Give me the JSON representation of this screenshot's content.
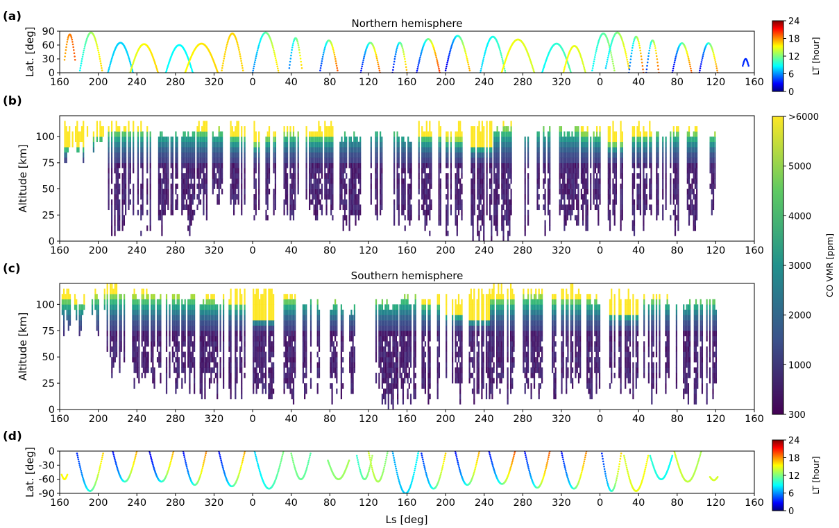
{
  "figure": {
    "xlabel": "Ls [deg]",
    "colorbars": {
      "lt": {
        "label": "LT [hour]",
        "ticks": [
          "0",
          "6",
          "12",
          "18",
          "24"
        ]
      },
      "co": {
        "label": "CO VMR [ppm]",
        "ticks": [
          "300",
          "1000",
          "2000",
          "3000",
          "4000",
          "5000",
          ">6000"
        ]
      }
    }
  },
  "chart_data": [
    {
      "id": "a",
      "panel_letter": "(a)",
      "type": "scatter",
      "title": "Northern hemisphere",
      "xlabel": "",
      "ylabel": "Lat. [deg]",
      "xticks": [
        "160",
        "200",
        "240",
        "280",
        "320",
        "0",
        "40",
        "80",
        "120",
        "160",
        "200",
        "240",
        "280",
        "320",
        "0",
        "40",
        "80",
        "120",
        "160"
      ],
      "yticks": [
        "0",
        "30",
        "60",
        "90"
      ],
      "ylim": [
        0,
        90
      ],
      "xlim_unwrapped_ls": [
        160,
        880
      ],
      "color_by": "LT [hour]",
      "colormap": "jet",
      "arcs": [
        {
          "ls_start": 165,
          "ls_end": 176,
          "peak": 83,
          "base": 28,
          "lt_start": 17,
          "lt_end": 19
        },
        {
          "ls_start": 181,
          "ls_end": 204,
          "peak": 87,
          "base": 5,
          "lt_start": 9,
          "lt_end": 16
        },
        {
          "ls_start": 210,
          "ls_end": 236,
          "peak": 65,
          "base": 0,
          "lt_start": 8,
          "lt_end": 8
        },
        {
          "ls_start": 233,
          "ls_end": 262,
          "peak": 62,
          "base": 0,
          "lt_start": 14,
          "lt_end": 16
        },
        {
          "ls_start": 270,
          "ls_end": 298,
          "peak": 60,
          "base": 0,
          "lt_start": 9,
          "lt_end": 9
        },
        {
          "ls_start": 290,
          "ls_end": 324,
          "peak": 63,
          "base": 0,
          "lt_start": 15,
          "lt_end": 16
        },
        {
          "ls_start": 328,
          "ls_end": 350,
          "peak": 85,
          "base": 5,
          "lt_start": 16,
          "lt_end": 16
        },
        {
          "ls_start": 360,
          "ls_end": 387,
          "peak": 87,
          "base": 0,
          "lt_start": 6,
          "lt_end": 16
        },
        {
          "ls_start": 398,
          "ls_end": 411,
          "peak": 75,
          "base": 10,
          "lt_start": 6,
          "lt_end": 16
        },
        {
          "ls_start": 430,
          "ls_end": 448,
          "peak": 70,
          "base": 5,
          "lt_start": 4,
          "lt_end": 19
        },
        {
          "ls_start": 472,
          "ls_end": 492,
          "peak": 65,
          "base": 0,
          "lt_start": 3,
          "lt_end": 19
        },
        {
          "ls_start": 505,
          "ls_end": 520,
          "peak": 65,
          "base": 0,
          "lt_start": 3,
          "lt_end": 17
        },
        {
          "ls_start": 530,
          "ls_end": 554,
          "peak": 73,
          "base": 0,
          "lt_start": 3,
          "lt_end": 20
        },
        {
          "ls_start": 560,
          "ls_end": 585,
          "peak": 80,
          "base": 5,
          "lt_start": 2,
          "lt_end": 17
        },
        {
          "ls_start": 596,
          "ls_end": 622,
          "peak": 78,
          "base": 0,
          "lt_start": 8,
          "lt_end": 11
        },
        {
          "ls_start": 618,
          "ls_end": 652,
          "peak": 72,
          "base": 0,
          "lt_start": 15,
          "lt_end": 14
        },
        {
          "ls_start": 660,
          "ls_end": 690,
          "peak": 63,
          "base": 0,
          "lt_start": 9,
          "lt_end": 11
        },
        {
          "ls_start": 682,
          "ls_end": 705,
          "peak": 58,
          "base": 0,
          "lt_start": 15,
          "lt_end": 14
        },
        {
          "ls_start": 712,
          "ls_end": 735,
          "peak": 85,
          "base": 5,
          "lt_start": 9,
          "lt_end": 13
        },
        {
          "ls_start": 726,
          "ls_end": 750,
          "peak": 87,
          "base": 10,
          "lt_start": 8,
          "lt_end": 16
        },
        {
          "ls_start": 750,
          "ls_end": 765,
          "peak": 78,
          "base": 0,
          "lt_start": 5,
          "lt_end": 19
        },
        {
          "ls_start": 768,
          "ls_end": 781,
          "peak": 70,
          "base": 0,
          "lt_start": 4,
          "lt_end": 19
        },
        {
          "ls_start": 795,
          "ls_end": 815,
          "peak": 64,
          "base": 0,
          "lt_start": 2,
          "lt_end": 19
        },
        {
          "ls_start": 823,
          "ls_end": 842,
          "peak": 64,
          "base": 0,
          "lt_start": 2,
          "lt_end": 18
        },
        {
          "ls_start": 868,
          "ls_end": 874,
          "peak": 30,
          "base": 15,
          "lt_start": 4,
          "lt_end": 4
        }
      ]
    },
    {
      "id": "b",
      "panel_letter": "(b)",
      "type": "heatmap",
      "title": "",
      "xlabel": "",
      "ylabel": "Altitude [km]",
      "xticks": [
        "160",
        "200",
        "240",
        "280",
        "320",
        "0",
        "40",
        "80",
        "120",
        "160",
        "200",
        "240",
        "280",
        "320",
        "0",
        "40",
        "80",
        "120",
        "160"
      ],
      "yticks": [
        "0",
        "25",
        "50",
        "75",
        "100"
      ],
      "ylim": [
        0,
        120
      ],
      "xlim_unwrapped_ls": [
        160,
        880
      ],
      "color_by": "CO VMR [ppm]",
      "colormap": "viridis",
      "vmin": 300,
      "vmax": 6000,
      "profile_groups": [
        {
          "ls_start": 163,
          "ls_end": 185,
          "top": 115,
          "bottom": 70,
          "yellow_below": 88
        },
        {
          "ls_start": 188,
          "ls_end": 197,
          "top": 110,
          "bottom": 75,
          "yellow_below": 98
        },
        {
          "ls_start": 198,
          "ls_end": 206,
          "top": 112,
          "bottom": 85,
          "yellow_below": 100
        },
        {
          "ls_start": 210,
          "ls_end": 258,
          "top": 115,
          "bottom": 5,
          "yellow_below": 105
        },
        {
          "ls_start": 262,
          "ls_end": 300,
          "top": 110,
          "bottom": 5,
          "yellow_below": 107
        },
        {
          "ls_start": 302,
          "ls_end": 312,
          "top": 112,
          "bottom": 20,
          "yellow_below": 105
        },
        {
          "ls_start": 318,
          "ls_end": 329,
          "top": 110,
          "bottom": 35,
          "yellow_below": 106
        },
        {
          "ls_start": 335,
          "ls_end": 352,
          "top": 112,
          "bottom": 20,
          "yellow_below": 100
        },
        {
          "ls_start": 361,
          "ls_end": 368,
          "top": 115,
          "bottom": 20,
          "yellow_below": 92
        },
        {
          "ls_start": 370,
          "ls_end": 384,
          "top": 110,
          "bottom": 20,
          "yellow_below": 98
        },
        {
          "ls_start": 392,
          "ls_end": 408,
          "top": 110,
          "bottom": 20,
          "yellow_below": 102
        },
        {
          "ls_start": 415,
          "ls_end": 444,
          "top": 115,
          "bottom": 20,
          "yellow_below": 100
        },
        {
          "ls_start": 450,
          "ls_end": 472,
          "top": 105,
          "bottom": 10,
          "yellow_below": 106
        },
        {
          "ls_start": 482,
          "ls_end": 497,
          "top": 108,
          "bottom": 10,
          "yellow_below": 109
        },
        {
          "ls_start": 506,
          "ls_end": 525,
          "top": 105,
          "bottom": 5,
          "yellow_below": 106
        },
        {
          "ls_start": 530,
          "ls_end": 556,
          "top": 112,
          "bottom": 5,
          "yellow_below": 100
        },
        {
          "ls_start": 560,
          "ls_end": 577,
          "top": 112,
          "bottom": 5,
          "yellow_below": 96
        },
        {
          "ls_start": 586,
          "ls_end": 608,
          "top": 112,
          "bottom": 0,
          "yellow_below": 90
        },
        {
          "ls_start": 608,
          "ls_end": 630,
          "top": 112,
          "bottom": 0,
          "yellow_below": 108
        },
        {
          "ls_start": 640,
          "ls_end": 668,
          "top": 108,
          "bottom": 5,
          "yellow_below": 109
        },
        {
          "ls_start": 676,
          "ls_end": 697,
          "top": 106,
          "bottom": 5,
          "yellow_below": 108
        },
        {
          "ls_start": 700,
          "ls_end": 720,
          "top": 110,
          "bottom": 10,
          "yellow_below": 102
        },
        {
          "ls_start": 728,
          "ls_end": 743,
          "top": 112,
          "bottom": 10,
          "yellow_below": 92
        },
        {
          "ls_start": 750,
          "ls_end": 775,
          "top": 112,
          "bottom": 5,
          "yellow_below": 100
        },
        {
          "ls_start": 778,
          "ls_end": 801,
          "top": 108,
          "bottom": 5,
          "yellow_below": 104
        },
        {
          "ls_start": 810,
          "ls_end": 823,
          "top": 106,
          "bottom": 10,
          "yellow_below": 103
        },
        {
          "ls_start": 832,
          "ls_end": 840,
          "top": 104,
          "bottom": 25,
          "yellow_below": 101
        }
      ]
    },
    {
      "id": "c",
      "panel_letter": "(c)",
      "type": "heatmap",
      "title": "Southern hemisphere",
      "xlabel": "",
      "ylabel": "Altitude [km]",
      "xticks": [
        "160",
        "200",
        "240",
        "280",
        "320",
        "0",
        "40",
        "80",
        "120",
        "160",
        "200",
        "240",
        "280",
        "320",
        "0",
        "40",
        "80",
        "120",
        "160"
      ],
      "yticks": [
        "0",
        "25",
        "50",
        "75",
        "100"
      ],
      "ylim": [
        0,
        120
      ],
      "xlim_unwrapped_ls": [
        160,
        880
      ],
      "color_by": "CO VMR [ppm]",
      "colormap": "viridis",
      "vmin": 300,
      "vmax": 6000,
      "profile_groups": [
        {
          "ls_start": 162,
          "ls_end": 170,
          "top": 112,
          "bottom": 70,
          "yellow_below": 104
        },
        {
          "ls_start": 175,
          "ls_end": 186,
          "top": 110,
          "bottom": 70,
          "yellow_below": 100
        },
        {
          "ls_start": 193,
          "ls_end": 206,
          "top": 115,
          "bottom": 70,
          "yellow_below": 106
        },
        {
          "ls_start": 207,
          "ls_end": 228,
          "top": 118,
          "bottom": 30,
          "yellow_below": 108
        },
        {
          "ls_start": 235,
          "ls_end": 265,
          "top": 112,
          "bottom": 20,
          "yellow_below": 106
        },
        {
          "ls_start": 270,
          "ls_end": 300,
          "top": 110,
          "bottom": 15,
          "yellow_below": 106
        },
        {
          "ls_start": 305,
          "ls_end": 330,
          "top": 110,
          "bottom": 10,
          "yellow_below": 103
        },
        {
          "ls_start": 335,
          "ls_end": 352,
          "top": 115,
          "bottom": 5,
          "yellow_below": 100
        },
        {
          "ls_start": 360,
          "ls_end": 384,
          "top": 112,
          "bottom": 5,
          "yellow_below": 85
        },
        {
          "ls_start": 392,
          "ls_end": 407,
          "top": 110,
          "bottom": 5,
          "yellow_below": 104
        },
        {
          "ls_start": 410,
          "ls_end": 420,
          "top": 106,
          "bottom": 10,
          "yellow_below": 107
        },
        {
          "ls_start": 425,
          "ls_end": 431,
          "top": 102,
          "bottom": 10,
          "yellow_below": 103
        },
        {
          "ls_start": 440,
          "ls_end": 454,
          "top": 101,
          "bottom": 5,
          "yellow_below": 102
        },
        {
          "ls_start": 460,
          "ls_end": 467,
          "top": 100,
          "bottom": 15,
          "yellow_below": 101
        },
        {
          "ls_start": 484,
          "ls_end": 512,
          "top": 102,
          "bottom": 0,
          "yellow_below": 103
        },
        {
          "ls_start": 512,
          "ls_end": 530,
          "top": 106,
          "bottom": 5,
          "yellow_below": 107
        },
        {
          "ls_start": 535,
          "ls_end": 556,
          "top": 108,
          "bottom": 5,
          "yellow_below": 100
        },
        {
          "ls_start": 560,
          "ls_end": 578,
          "top": 110,
          "bottom": 5,
          "yellow_below": 90
        },
        {
          "ls_start": 584,
          "ls_end": 606,
          "top": 115,
          "bottom": 5,
          "yellow_below": 84
        },
        {
          "ls_start": 606,
          "ls_end": 632,
          "top": 118,
          "bottom": 5,
          "yellow_below": 104
        },
        {
          "ls_start": 640,
          "ls_end": 664,
          "top": 112,
          "bottom": 10,
          "yellow_below": 107
        },
        {
          "ls_start": 670,
          "ls_end": 700,
          "top": 116,
          "bottom": 10,
          "yellow_below": 104
        },
        {
          "ls_start": 706,
          "ls_end": 720,
          "top": 110,
          "bottom": 10,
          "yellow_below": 104
        },
        {
          "ls_start": 728,
          "ls_end": 760,
          "top": 112,
          "bottom": 5,
          "yellow_below": 90
        },
        {
          "ls_start": 765,
          "ls_end": 800,
          "top": 106,
          "bottom": 5,
          "yellow_below": 104
        },
        {
          "ls_start": 806,
          "ls_end": 826,
          "top": 104,
          "bottom": 5,
          "yellow_below": 104
        },
        {
          "ls_start": 830,
          "ls_end": 840,
          "top": 104,
          "bottom": 5,
          "yellow_below": 104
        }
      ]
    },
    {
      "id": "d",
      "panel_letter": "(d)",
      "type": "scatter",
      "title": "",
      "xlabel": "Ls [deg]",
      "ylabel": "Lat. [deg]",
      "xticks": [
        "160",
        "200",
        "240",
        "280",
        "320",
        "0",
        "40",
        "80",
        "120",
        "160",
        "200",
        "240",
        "280",
        "320",
        "0",
        "40",
        "80",
        "120",
        "160"
      ],
      "yticks": [
        "-90",
        "-60",
        "-30",
        "0"
      ],
      "ylim": [
        -90,
        0
      ],
      "xlim_unwrapped_ls": [
        160,
        880
      ],
      "color_by": "LT [hour]",
      "colormap": "jet",
      "arcs": [
        {
          "ls_start": 178,
          "ls_end": 205,
          "peak": -85,
          "base": -5,
          "lt_start": 4,
          "lt_end": 16
        },
        {
          "ls_start": 162,
          "ls_end": 168,
          "peak": -60,
          "base": -50,
          "lt_start": 15,
          "lt_end": 15
        },
        {
          "ls_start": 215,
          "ls_end": 240,
          "peak": -65,
          "base": 0,
          "lt_start": 3,
          "lt_end": 17
        },
        {
          "ls_start": 253,
          "ls_end": 278,
          "peak": -65,
          "base": 0,
          "lt_start": 2,
          "lt_end": 17
        },
        {
          "ls_start": 288,
          "ls_end": 312,
          "peak": -72,
          "base": 0,
          "lt_start": 3,
          "lt_end": 18
        },
        {
          "ls_start": 325,
          "ls_end": 352,
          "peak": -75,
          "base": 0,
          "lt_start": 3,
          "lt_end": 17
        },
        {
          "ls_start": 362,
          "ls_end": 392,
          "peak": -80,
          "base": 0,
          "lt_start": 8,
          "lt_end": 12
        },
        {
          "ls_start": 400,
          "ls_end": 420,
          "peak": -60,
          "base": -5,
          "lt_start": 12,
          "lt_end": 11
        },
        {
          "ls_start": 438,
          "ls_end": 460,
          "peak": -60,
          "base": -20,
          "lt_start": 12,
          "lt_end": 13
        },
        {
          "ls_start": 468,
          "ls_end": 484,
          "peak": -60,
          "base": -10,
          "lt_start": 10,
          "lt_end": 13
        },
        {
          "ls_start": 480,
          "ls_end": 500,
          "peak": -65,
          "base": 0,
          "lt_start": 14,
          "lt_end": 12
        },
        {
          "ls_start": 505,
          "ls_end": 532,
          "peak": -90,
          "base": 0,
          "lt_start": 7,
          "lt_end": 9
        },
        {
          "ls_start": 535,
          "ls_end": 560,
          "peak": -80,
          "base": -5,
          "lt_start": 4,
          "lt_end": 16
        },
        {
          "ls_start": 570,
          "ls_end": 595,
          "peak": -72,
          "base": 0,
          "lt_start": 3,
          "lt_end": 17
        },
        {
          "ls_start": 605,
          "ls_end": 632,
          "peak": -70,
          "base": 0,
          "lt_start": 3,
          "lt_end": 19
        },
        {
          "ls_start": 642,
          "ls_end": 668,
          "peak": -78,
          "base": 0,
          "lt_start": 3,
          "lt_end": 19
        },
        {
          "ls_start": 680,
          "ls_end": 706,
          "peak": -80,
          "base": 0,
          "lt_start": 3,
          "lt_end": 18
        },
        {
          "ls_start": 722,
          "ls_end": 742,
          "peak": -85,
          "base": -5,
          "lt_start": 4,
          "lt_end": 16
        },
        {
          "ls_start": 745,
          "ls_end": 770,
          "peak": -85,
          "base": -10,
          "lt_start": 14,
          "lt_end": 15
        },
        {
          "ls_start": 772,
          "ls_end": 795,
          "peak": -60,
          "base": -10,
          "lt_start": 10,
          "lt_end": 9
        },
        {
          "ls_start": 797,
          "ls_end": 825,
          "peak": -65,
          "base": 0,
          "lt_start": 14,
          "lt_end": 13
        },
        {
          "ls_start": 834,
          "ls_end": 842,
          "peak": -62,
          "base": -55,
          "lt_start": 14,
          "lt_end": 14
        }
      ]
    }
  ]
}
